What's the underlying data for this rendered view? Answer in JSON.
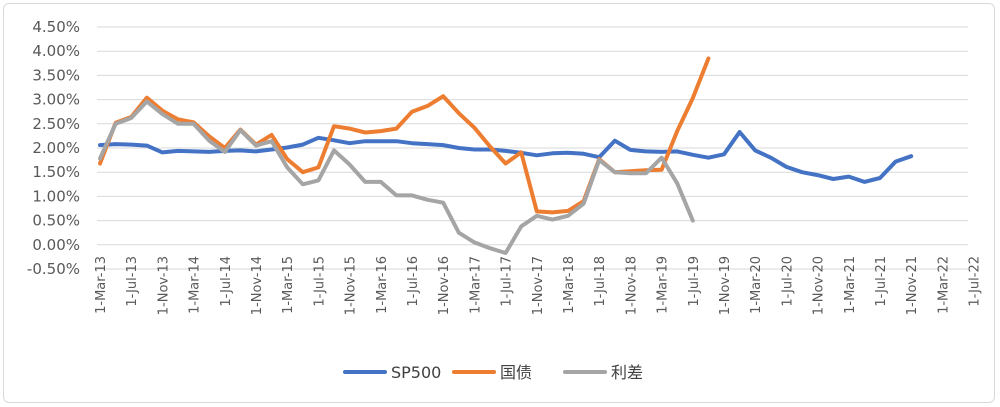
{
  "chart_data": {
    "type": "line",
    "title": "",
    "xlabel": "",
    "ylabel": "",
    "ylim": [
      -0.005,
      0.045
    ],
    "y_ticks": [
      "4.50%",
      "4.00%",
      "3.50%",
      "3.00%",
      "2.50%",
      "2.00%",
      "1.50%",
      "1.00%",
      "0.50%",
      "0.00%",
      "-0.50%"
    ],
    "y_tick_values": [
      0.045,
      0.04,
      0.035,
      0.03,
      0.025,
      0.02,
      0.015,
      0.01,
      0.005,
      0.0,
      -0.005
    ],
    "grid": "horizontal",
    "legend_position": "bottom",
    "x": [
      "1-Mar-13",
      "1-Jul-13",
      "1-Nov-13",
      "1-Mar-14",
      "1-Jul-14",
      "1-Nov-14",
      "1-Mar-15",
      "1-Jul-15",
      "1-Nov-15",
      "1-Mar-16",
      "1-Jul-16",
      "1-Nov-16",
      "1-Mar-17",
      "1-Jul-17",
      "1-Nov-17",
      "1-Mar-18",
      "1-Jul-18",
      "1-Nov-18",
      "1-Mar-19",
      "1-Jul-19",
      "1-Nov-19",
      "1-Mar-20",
      "1-Jul-20",
      "1-Nov-20",
      "1-Mar-21",
      "1-Jul-21",
      "1-Nov-21",
      "1-Mar-22",
      "1-Jul-22"
    ],
    "series": [
      {
        "name": "SP500",
        "color": "#4472C4",
        "points": [
          [
            "1-Mar-13",
            0.0206
          ],
          [
            "1-May-13",
            0.0208
          ],
          [
            "1-Jul-13",
            0.0207
          ],
          [
            "1-Sep-13",
            0.0205
          ],
          [
            "1-Nov-13",
            0.0191
          ],
          [
            "1-Jan-14",
            0.0194
          ],
          [
            "1-Mar-14",
            0.0193
          ],
          [
            "1-May-14",
            0.0192
          ],
          [
            "1-Jul-14",
            0.0194
          ],
          [
            "1-Sep-14",
            0.0195
          ],
          [
            "1-Nov-14",
            0.0193
          ],
          [
            "1-Jan-15",
            0.0197
          ],
          [
            "1-Mar-15",
            0.0201
          ],
          [
            "1-May-15",
            0.0207
          ],
          [
            "1-Jul-15",
            0.0221
          ],
          [
            "1-Sep-15",
            0.0216
          ],
          [
            "1-Nov-15",
            0.021
          ],
          [
            "1-Jan-16",
            0.0214
          ],
          [
            "1-Mar-16",
            0.0214
          ],
          [
            "1-May-16",
            0.0214
          ],
          [
            "1-Jul-16",
            0.021
          ],
          [
            "1-Sep-16",
            0.0208
          ],
          [
            "1-Nov-16",
            0.0206
          ],
          [
            "1-Jan-17",
            0.02
          ],
          [
            "1-Mar-17",
            0.0197
          ],
          [
            "1-May-17",
            0.0197
          ],
          [
            "1-Jul-17",
            0.0194
          ],
          [
            "1-Sep-17",
            0.019
          ],
          [
            "1-Nov-17",
            0.0185
          ],
          [
            "1-Jan-18",
            0.0189
          ],
          [
            "1-Mar-18",
            0.019
          ],
          [
            "1-May-18",
            0.0188
          ],
          [
            "1-Jul-18",
            0.0181
          ],
          [
            "1-Sep-18",
            0.0215
          ],
          [
            "1-Nov-18",
            0.0196
          ],
          [
            "1-Jan-19",
            0.0193
          ],
          [
            "1-Mar-19",
            0.0192
          ],
          [
            "1-May-19",
            0.0193
          ],
          [
            "1-Jul-19",
            0.0186
          ],
          [
            "1-Sep-19",
            0.018
          ],
          [
            "1-Nov-19",
            0.0187
          ],
          [
            "1-Jan-20",
            0.0233
          ],
          [
            "1-Mar-20",
            0.0195
          ],
          [
            "1-May-20",
            0.018
          ],
          [
            "1-Jul-20",
            0.0161
          ],
          [
            "1-Sep-20",
            0.015
          ],
          [
            "1-Nov-20",
            0.0144
          ],
          [
            "1-Jan-21",
            0.0136
          ],
          [
            "1-Mar-21",
            0.0141
          ],
          [
            "1-May-21",
            0.013
          ],
          [
            "1-Jul-21",
            0.0138
          ],
          [
            "1-Sep-21",
            0.0172
          ],
          [
            "1-Nov-21",
            0.0183
          ]
        ]
      },
      {
        "name": "国债",
        "color": "#ED7D31",
        "points": [
          [
            "1-Mar-13",
            0.0168
          ],
          [
            "1-May-13",
            0.0252
          ],
          [
            "1-Jul-13",
            0.0264
          ],
          [
            "1-Sep-13",
            0.0304
          ],
          [
            "1-Nov-13",
            0.0277
          ],
          [
            "1-Jan-14",
            0.0259
          ],
          [
            "1-Mar-14",
            0.0253
          ],
          [
            "1-May-14",
            0.0224
          ],
          [
            "1-Jul-14",
            0.02
          ],
          [
            "1-Sep-14",
            0.0238
          ],
          [
            "1-Nov-14",
            0.0207
          ],
          [
            "1-Jan-15",
            0.0227
          ],
          [
            "1-Mar-15",
            0.0177
          ],
          [
            "1-May-15",
            0.015
          ],
          [
            "1-Jul-15",
            0.016
          ],
          [
            "1-Sep-15",
            0.0245
          ],
          [
            "1-Nov-15",
            0.024
          ],
          [
            "1-Jan-16",
            0.0232
          ],
          [
            "1-Mar-16",
            0.0235
          ],
          [
            "1-May-16",
            0.024
          ],
          [
            "1-Jul-16",
            0.0275
          ],
          [
            "1-Sep-16",
            0.0287
          ],
          [
            "1-Nov-16",
            0.0307
          ],
          [
            "1-Jan-17",
            0.0272
          ],
          [
            "1-Mar-17",
            0.0242
          ],
          [
            "1-May-17",
            0.0203
          ],
          [
            "1-Jul-17",
            0.0168
          ],
          [
            "1-Sep-17",
            0.0191
          ],
          [
            "1-Nov-17",
            0.0069
          ],
          [
            "1-Jan-18",
            0.0067
          ],
          [
            "1-Mar-18",
            0.007
          ],
          [
            "1-May-18",
            0.009
          ],
          [
            "1-Jul-18",
            0.0177
          ],
          [
            "1-Sep-18",
            0.015
          ],
          [
            "1-Nov-18",
            0.0152
          ],
          [
            "1-Jan-19",
            0.0154
          ],
          [
            "1-Mar-19",
            0.0155
          ],
          [
            "1-May-19",
            0.0235
          ],
          [
            "1-Jul-19",
            0.0303
          ],
          [
            "1-Sep-19",
            0.0385
          ]
        ]
      },
      {
        "name": "利差",
        "color": "#A5A5A5",
        "points": [
          [
            "1-Mar-13",
            0.0178
          ],
          [
            "1-May-13",
            0.025
          ],
          [
            "1-Jul-13",
            0.0262
          ],
          [
            "1-Sep-13",
            0.0296
          ],
          [
            "1-Nov-13",
            0.027
          ],
          [
            "1-Jan-14",
            0.025
          ],
          [
            "1-Mar-14",
            0.025
          ],
          [
            "1-May-14",
            0.0215
          ],
          [
            "1-Jul-14",
            0.0192
          ],
          [
            "1-Sep-14",
            0.0237
          ],
          [
            "1-Nov-14",
            0.0205
          ],
          [
            "1-Jan-15",
            0.0214
          ],
          [
            "1-Mar-15",
            0.016
          ],
          [
            "1-May-15",
            0.0125
          ],
          [
            "1-Jul-15",
            0.0133
          ],
          [
            "1-Sep-15",
            0.0195
          ],
          [
            "1-Nov-15",
            0.0166
          ],
          [
            "1-Jan-16",
            0.013
          ],
          [
            "1-Mar-16",
            0.013
          ],
          [
            "1-May-16",
            0.0102
          ],
          [
            "1-Jul-16",
            0.0102
          ],
          [
            "1-Sep-16",
            0.0093
          ],
          [
            "1-Nov-16",
            0.0087
          ],
          [
            "1-Jan-17",
            0.0025
          ],
          [
            "1-Mar-17",
            0.0005
          ],
          [
            "1-May-17",
            -0.0007
          ],
          [
            "1-Jul-17",
            -0.0017
          ],
          [
            "1-Sep-17",
            0.0038
          ],
          [
            "1-Nov-17",
            0.006
          ],
          [
            "1-Jan-18",
            0.0052
          ],
          [
            "1-Mar-18",
            0.006
          ],
          [
            "1-May-18",
            0.0085
          ],
          [
            "1-Jul-18",
            0.0175
          ],
          [
            "1-Sep-18",
            0.015
          ],
          [
            "1-Nov-18",
            0.0148
          ],
          [
            "1-Jan-19",
            0.0148
          ],
          [
            "1-Mar-19",
            0.018
          ],
          [
            "1-May-19",
            0.0127
          ],
          [
            "1-Jul-19",
            0.005
          ]
        ]
      }
    ]
  }
}
